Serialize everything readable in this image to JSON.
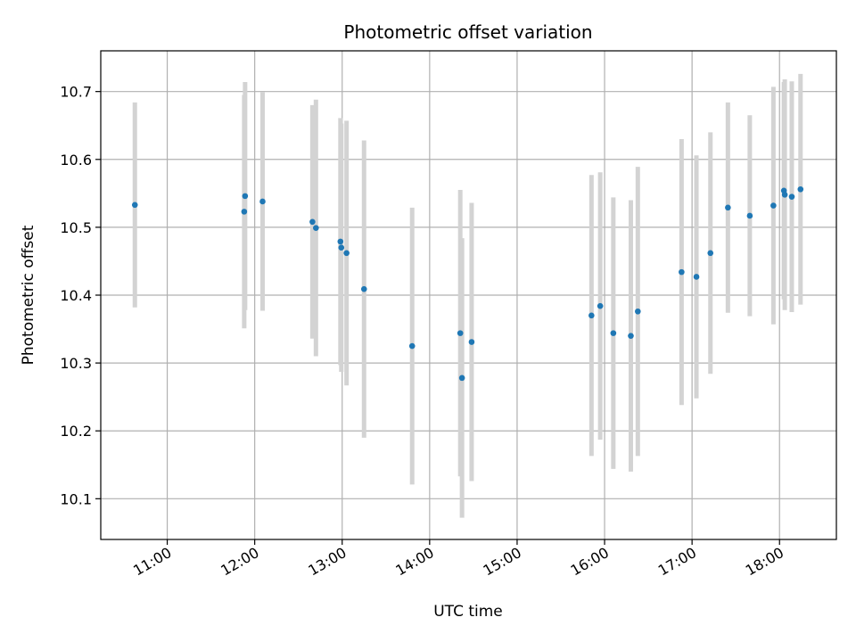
{
  "chart_data": {
    "type": "scatter",
    "title": "Photometric offset variation",
    "xlabel": "UTC time",
    "ylabel": "Photometric offset",
    "x_unit": "time of day (hours, UTC)",
    "xlim": [
      10.24,
      18.65
    ],
    "ylim": [
      10.04,
      10.76
    ],
    "x_ticks": [
      {
        "value": 11,
        "label": "11:00"
      },
      {
        "value": 12,
        "label": "12:00"
      },
      {
        "value": 13,
        "label": "13:00"
      },
      {
        "value": 14,
        "label": "14:00"
      },
      {
        "value": 15,
        "label": "15:00"
      },
      {
        "value": 16,
        "label": "16:00"
      },
      {
        "value": 17,
        "label": "17:00"
      },
      {
        "value": 18,
        "label": "18:00"
      }
    ],
    "y_ticks": [
      {
        "value": 10.1,
        "label": "10.1"
      },
      {
        "value": 10.2,
        "label": "10.2"
      },
      {
        "value": 10.3,
        "label": "10.3"
      },
      {
        "value": 10.4,
        "label": "10.4"
      },
      {
        "value": 10.5,
        "label": "10.5"
      },
      {
        "value": 10.6,
        "label": "10.6"
      },
      {
        "value": 10.7,
        "label": "10.7"
      }
    ],
    "grid": true,
    "point_color": "#1f77b4",
    "errorbar_color": "#d3d3d3",
    "points": [
      {
        "x": 10.63,
        "y": 10.533,
        "err": 0.151
      },
      {
        "x": 11.88,
        "y": 10.523,
        "err": 0.172
      },
      {
        "x": 11.89,
        "y": 10.546,
        "err": 0.168
      },
      {
        "x": 12.09,
        "y": 10.538,
        "err": 0.161
      },
      {
        "x": 12.66,
        "y": 10.508,
        "err": 0.172
      },
      {
        "x": 12.7,
        "y": 10.499,
        "err": 0.189
      },
      {
        "x": 12.98,
        "y": 10.479,
        "err": 0.182
      },
      {
        "x": 12.99,
        "y": 10.47,
        "err": 0.183
      },
      {
        "x": 13.05,
        "y": 10.462,
        "err": 0.195
      },
      {
        "x": 13.25,
        "y": 10.409,
        "err": 0.219
      },
      {
        "x": 13.8,
        "y": 10.325,
        "err": 0.204
      },
      {
        "x": 14.35,
        "y": 10.344,
        "err": 0.211
      },
      {
        "x": 14.37,
        "y": 10.278,
        "err": 0.206
      },
      {
        "x": 14.48,
        "y": 10.331,
        "err": 0.205
      },
      {
        "x": 15.85,
        "y": 10.37,
        "err": 0.207
      },
      {
        "x": 15.95,
        "y": 10.384,
        "err": 0.197
      },
      {
        "x": 16.1,
        "y": 10.344,
        "err": 0.2
      },
      {
        "x": 16.3,
        "y": 10.34,
        "err": 0.2
      },
      {
        "x": 16.38,
        "y": 10.376,
        "err": 0.213
      },
      {
        "x": 16.88,
        "y": 10.434,
        "err": 0.196
      },
      {
        "x": 17.05,
        "y": 10.427,
        "err": 0.179
      },
      {
        "x": 17.21,
        "y": 10.462,
        "err": 0.178
      },
      {
        "x": 17.41,
        "y": 10.529,
        "err": 0.155
      },
      {
        "x": 17.66,
        "y": 10.517,
        "err": 0.148
      },
      {
        "x": 17.93,
        "y": 10.532,
        "err": 0.175
      },
      {
        "x": 18.05,
        "y": 10.554,
        "err": 0.16
      },
      {
        "x": 18.06,
        "y": 10.548,
        "err": 0.17
      },
      {
        "x": 18.14,
        "y": 10.545,
        "err": 0.17
      },
      {
        "x": 18.24,
        "y": 10.556,
        "err": 0.17
      }
    ]
  }
}
